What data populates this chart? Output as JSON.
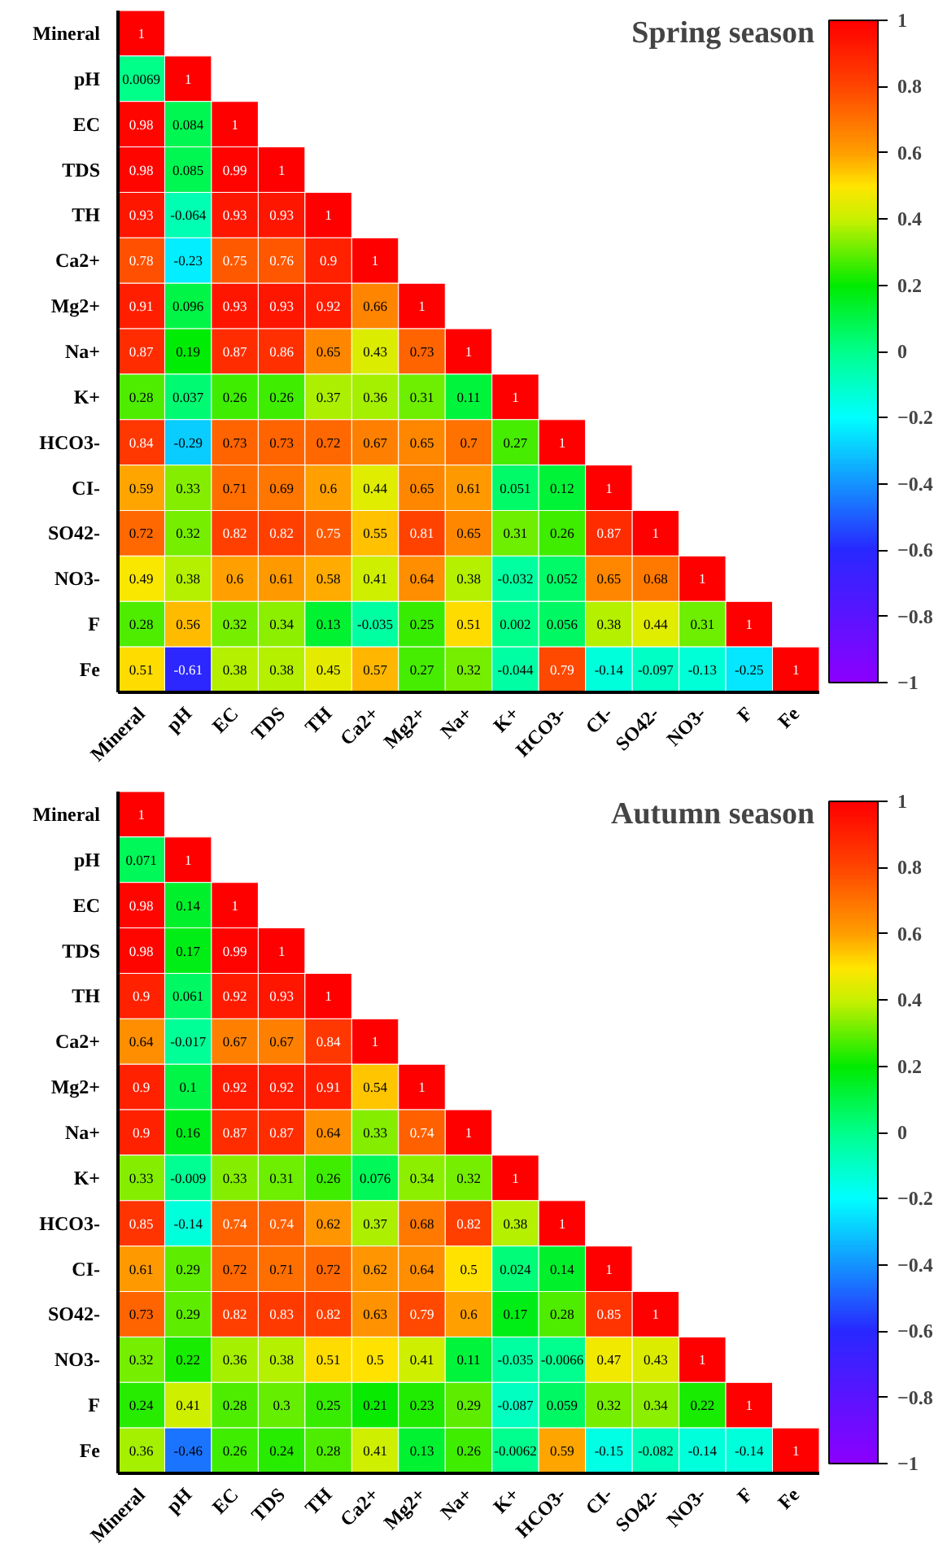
{
  "chart_data": [
    {
      "type": "heatmap",
      "title": "Spring season",
      "clim": [
        -1,
        1
      ],
      "cticks": [
        -1,
        -0.8,
        -0.6,
        -0.4,
        -0.2,
        0,
        0.2,
        0.4,
        0.6,
        0.8,
        1
      ],
      "categories": [
        "Mineral",
        "pH",
        "EC",
        "TDS",
        "TH",
        "Ca2+",
        "Mg2+",
        "Na+",
        "K+",
        "HCO3-",
        "CI-",
        "SO42-",
        "NO3-",
        "F",
        "Fe"
      ],
      "y_categories": [
        "Mineral",
        "pH",
        "EC",
        "TDS",
        "TH",
        "Ca2+",
        "Mg2+",
        "Na+",
        "K+",
        "HCO3-",
        "CI-",
        "SO42-",
        "NO3-",
        "F",
        "Fe"
      ],
      "cells": [
        [
          1,
          null,
          null,
          null,
          null,
          null,
          null,
          null,
          null,
          null,
          null,
          null,
          null,
          null,
          null
        ],
        [
          0.0069,
          1,
          null,
          null,
          null,
          null,
          null,
          null,
          null,
          null,
          null,
          null,
          null,
          null,
          null
        ],
        [
          0.98,
          0.084,
          1,
          null,
          null,
          null,
          null,
          null,
          null,
          null,
          null,
          null,
          null,
          null,
          null
        ],
        [
          0.98,
          0.085,
          0.99,
          1,
          null,
          null,
          null,
          null,
          null,
          null,
          null,
          null,
          null,
          null,
          null
        ],
        [
          0.93,
          -0.064,
          0.93,
          0.93,
          1,
          null,
          null,
          null,
          null,
          null,
          null,
          null,
          null,
          null,
          null
        ],
        [
          0.78,
          -0.23,
          0.75,
          0.76,
          0.9,
          1,
          null,
          null,
          null,
          null,
          null,
          null,
          null,
          null,
          null
        ],
        [
          0.91,
          0.096,
          0.93,
          0.93,
          0.92,
          0.66,
          1,
          null,
          null,
          null,
          null,
          null,
          null,
          null,
          null
        ],
        [
          0.87,
          0.19,
          0.87,
          0.86,
          0.65,
          0.43,
          0.73,
          1,
          null,
          null,
          null,
          null,
          null,
          null,
          null
        ],
        [
          0.28,
          0.037,
          0.26,
          0.26,
          0.37,
          0.36,
          0.31,
          0.11,
          1,
          null,
          null,
          null,
          null,
          null,
          null
        ],
        [
          0.84,
          -0.29,
          0.73,
          0.73,
          0.72,
          0.67,
          0.65,
          0.7,
          0.27,
          1,
          null,
          null,
          null,
          null,
          null
        ],
        [
          0.59,
          0.33,
          0.71,
          0.69,
          0.6,
          0.44,
          0.65,
          0.61,
          0.051,
          0.12,
          1,
          null,
          null,
          null,
          null
        ],
        [
          0.72,
          0.32,
          0.82,
          0.82,
          0.75,
          0.55,
          0.81,
          0.65,
          0.31,
          0.26,
          0.87,
          1,
          null,
          null,
          null
        ],
        [
          0.49,
          0.38,
          0.6,
          0.61,
          0.58,
          0.41,
          0.64,
          0.38,
          -0.032,
          0.052,
          0.65,
          0.68,
          1,
          null,
          null
        ],
        [
          0.28,
          0.56,
          0.32,
          0.34,
          0.13,
          -0.035,
          0.25,
          0.51,
          0.002,
          0.056,
          0.38,
          0.44,
          0.31,
          1,
          null
        ],
        [
          0.51,
          -0.61,
          0.38,
          0.38,
          0.45,
          0.57,
          0.27,
          0.32,
          -0.044,
          0.79,
          -0.14,
          -0.097,
          -0.13,
          -0.25,
          1
        ]
      ],
      "data_labels": true
    },
    {
      "type": "heatmap",
      "title": "Autumn season",
      "clim": [
        -1,
        1
      ],
      "cticks": [
        -1,
        -0.8,
        -0.6,
        -0.4,
        -0.2,
        0,
        0.2,
        0.4,
        0.6,
        0.8,
        1
      ],
      "categories": [
        "Mineral",
        "pH",
        "EC",
        "TDS",
        "TH",
        "Ca2+",
        "Mg2+",
        "Na+",
        "K+",
        "HCO3-",
        "CI-",
        "SO42-",
        "NO3-",
        "F",
        "Fe"
      ],
      "y_categories": [
        "Mineral",
        "pH",
        "EC",
        "TDS",
        "TH",
        "Ca2+",
        "Mg2+",
        "Na+",
        "K+",
        "HCO3-",
        "CI-",
        "SO42-",
        "NO3-",
        "F",
        "Fe"
      ],
      "cells": [
        [
          1,
          null,
          null,
          null,
          null,
          null,
          null,
          null,
          null,
          null,
          null,
          null,
          null,
          null,
          null
        ],
        [
          0.071,
          1,
          null,
          null,
          null,
          null,
          null,
          null,
          null,
          null,
          null,
          null,
          null,
          null,
          null
        ],
        [
          0.98,
          0.14,
          1,
          null,
          null,
          null,
          null,
          null,
          null,
          null,
          null,
          null,
          null,
          null,
          null
        ],
        [
          0.98,
          0.17,
          0.99,
          1,
          null,
          null,
          null,
          null,
          null,
          null,
          null,
          null,
          null,
          null,
          null
        ],
        [
          0.9,
          0.061,
          0.92,
          0.93,
          1,
          null,
          null,
          null,
          null,
          null,
          null,
          null,
          null,
          null,
          null
        ],
        [
          0.64,
          -0.017,
          0.67,
          0.67,
          0.84,
          1,
          null,
          null,
          null,
          null,
          null,
          null,
          null,
          null,
          null
        ],
        [
          0.9,
          0.1,
          0.92,
          0.92,
          0.91,
          0.54,
          1,
          null,
          null,
          null,
          null,
          null,
          null,
          null,
          null
        ],
        [
          0.9,
          0.16,
          0.87,
          0.87,
          0.64,
          0.33,
          0.74,
          1,
          null,
          null,
          null,
          null,
          null,
          null,
          null
        ],
        [
          0.33,
          -0.009,
          0.33,
          0.31,
          0.26,
          0.076,
          0.34,
          0.32,
          1,
          null,
          null,
          null,
          null,
          null,
          null
        ],
        [
          0.85,
          -0.14,
          0.74,
          0.74,
          0.62,
          0.37,
          0.68,
          0.82,
          0.38,
          1,
          null,
          null,
          null,
          null,
          null
        ],
        [
          0.61,
          0.29,
          0.72,
          0.71,
          0.72,
          0.62,
          0.64,
          0.5,
          0.024,
          0.14,
          1,
          null,
          null,
          null,
          null
        ],
        [
          0.73,
          0.29,
          0.82,
          0.83,
          0.82,
          0.63,
          0.79,
          0.6,
          0.17,
          0.28,
          0.85,
          1,
          null,
          null,
          null
        ],
        [
          0.32,
          0.22,
          0.36,
          0.38,
          0.51,
          0.5,
          0.41,
          0.11,
          -0.035,
          -0.0066,
          0.47,
          0.43,
          1,
          null,
          null
        ],
        [
          0.24,
          0.41,
          0.28,
          0.3,
          0.25,
          0.21,
          0.23,
          0.29,
          -0.087,
          0.059,
          0.32,
          0.34,
          0.22,
          1,
          null
        ],
        [
          0.36,
          -0.46,
          0.26,
          0.24,
          0.28,
          0.41,
          0.13,
          0.26,
          -0.0062,
          0.59,
          -0.15,
          -0.082,
          -0.14,
          -0.14,
          1
        ]
      ],
      "data_labels": true
    }
  ]
}
